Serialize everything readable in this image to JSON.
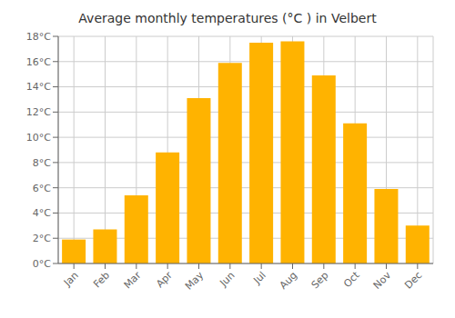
{
  "chart_data": {
    "type": "bar",
    "title": "Average monthly temperatures (°C ) in Velbert",
    "categories": [
      "Jan",
      "Feb",
      "Mar",
      "Apr",
      "May",
      "Jun",
      "Jul",
      "Aug",
      "Sep",
      "Oct",
      "Nov",
      "Dec"
    ],
    "values": [
      1.9,
      2.7,
      5.4,
      8.8,
      13.1,
      15.9,
      17.5,
      17.6,
      14.9,
      11.1,
      5.9,
      3.0
    ],
    "color": "#FFB300",
    "ylim": [
      0,
      18
    ],
    "yticks": [
      {
        "value": 0,
        "label": "0°C"
      },
      {
        "value": 2,
        "label": "2°C"
      },
      {
        "value": 4,
        "label": "4°C"
      },
      {
        "value": 6,
        "label": "6°C"
      },
      {
        "value": 8,
        "label": "8°C"
      },
      {
        "value": 10,
        "label": "10°C"
      },
      {
        "value": 12,
        "label": "12°C"
      },
      {
        "value": 14,
        "label": "14°C"
      },
      {
        "value": 16,
        "label": "16°C"
      },
      {
        "value": 18,
        "label": "18°C"
      }
    ],
    "grid": true
  }
}
